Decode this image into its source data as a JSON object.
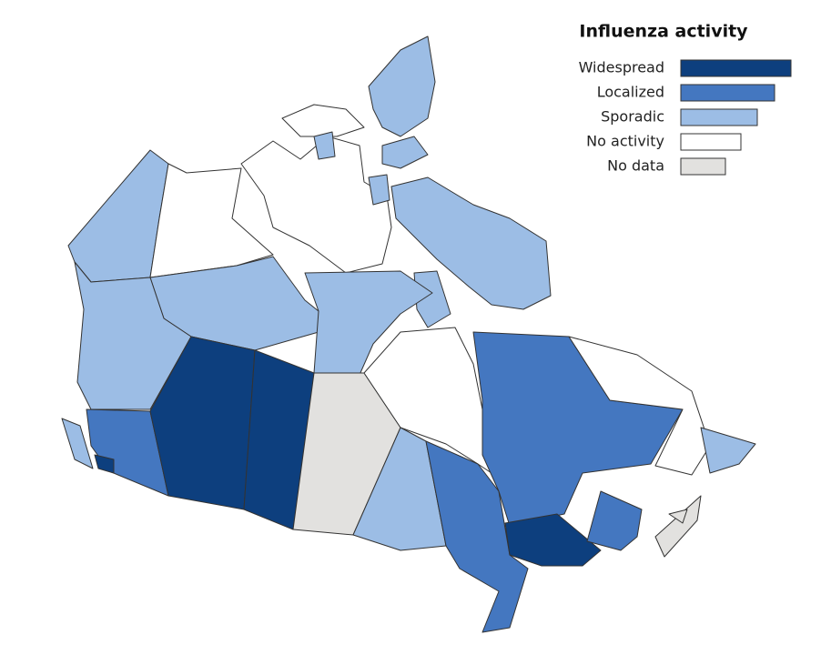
{
  "legend": {
    "title": "Influenza activity",
    "items": [
      {
        "label": "Widespread",
        "color": "#0d3f7e"
      },
      {
        "label": "Localized",
        "color": "#4477c0"
      },
      {
        "label": "Sporadic",
        "color": "#9cbde5"
      },
      {
        "label": "No activity",
        "color": "#ffffff"
      },
      {
        "label": "No data",
        "color": "#e2e1df"
      }
    ]
  }
}
